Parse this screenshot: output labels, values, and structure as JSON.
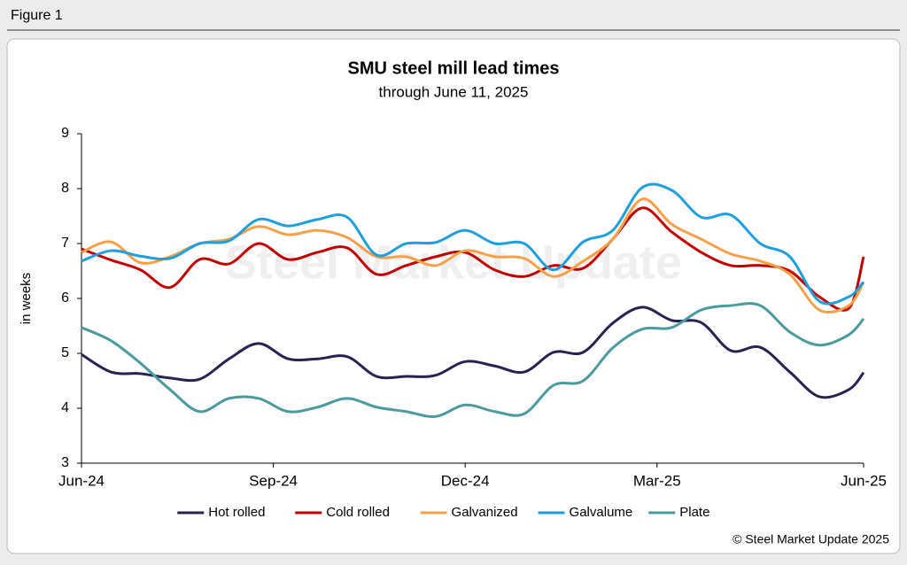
{
  "figure_label": "Figure 1",
  "chart_data": {
    "type": "line",
    "title": "SMU steel mill lead times",
    "subtitle": "through June 11, 2025",
    "y_label": "in weeks",
    "watermark": "Steel Market Update",
    "source": "© Steel Market Update 2025",
    "x": [
      0,
      2,
      4,
      6,
      8,
      10,
      12,
      14,
      16,
      18,
      20,
      22,
      24,
      26,
      28,
      30,
      32,
      34,
      36,
      38,
      40,
      42,
      44,
      46,
      48,
      50,
      52,
      53
    ],
    "xlim": [
      0,
      53
    ],
    "xticks": [
      {
        "value": 0,
        "label": "Jun-24"
      },
      {
        "value": 13,
        "label": "Sep-24"
      },
      {
        "value": 26,
        "label": "Dec-24"
      },
      {
        "value": 39,
        "label": "Mar-25"
      },
      {
        "value": 53,
        "label": "Jun-25"
      }
    ],
    "ylim": [
      3,
      9
    ],
    "yticks": [
      3,
      4,
      5,
      6,
      7,
      8,
      9
    ],
    "grid": false,
    "legend": "bottom",
    "series": [
      {
        "name": "Hot rolled",
        "color": "#27224f",
        "values": [
          4.98,
          4.66,
          4.63,
          4.55,
          4.53,
          4.9,
          5.18,
          4.9,
          4.9,
          4.94,
          4.58,
          4.58,
          4.6,
          4.85,
          4.77,
          4.66,
          5.02,
          5.02,
          5.55,
          5.84,
          5.6,
          5.56,
          5.05,
          5.11,
          4.66,
          4.21,
          4.34,
          4.65
        ]
      },
      {
        "name": "Cold rolled",
        "color": "#c00000",
        "values": [
          6.9,
          6.7,
          6.52,
          6.2,
          6.71,
          6.63,
          7.0,
          6.71,
          6.84,
          6.92,
          6.44,
          6.6,
          6.76,
          6.84,
          6.52,
          6.4,
          6.6,
          6.55,
          7.08,
          7.65,
          7.21,
          6.84,
          6.6,
          6.6,
          6.5,
          6.03,
          5.82,
          6.76
        ]
      },
      {
        "name": "Galvanized",
        "color": "#f7a04a",
        "values": [
          6.84,
          7.03,
          6.65,
          6.76,
          7.0,
          7.08,
          7.31,
          7.16,
          7.24,
          7.11,
          6.76,
          6.76,
          6.6,
          6.87,
          6.76,
          6.73,
          6.4,
          6.68,
          7.08,
          7.81,
          7.35,
          7.08,
          6.81,
          6.68,
          6.44,
          5.79,
          5.87,
          6.3
        ]
      },
      {
        "name": "Galvalume",
        "color": "#1fa0dc",
        "values": [
          6.68,
          6.87,
          6.77,
          6.73,
          7.0,
          7.05,
          7.44,
          7.32,
          7.44,
          7.48,
          6.79,
          7.0,
          7.02,
          7.24,
          7.0,
          7.0,
          6.52,
          7.03,
          7.24,
          8.02,
          7.97,
          7.48,
          7.52,
          7.0,
          6.76,
          5.95,
          6.03,
          6.3
        ]
      },
      {
        "name": "Plate",
        "color": "#4a9a9e",
        "values": [
          5.47,
          5.23,
          4.82,
          4.34,
          3.94,
          4.18,
          4.18,
          3.94,
          4.02,
          4.18,
          4.02,
          3.94,
          3.85,
          4.06,
          3.94,
          3.9,
          4.42,
          4.5,
          5.1,
          5.44,
          5.47,
          5.79,
          5.87,
          5.87,
          5.39,
          5.15,
          5.34,
          5.63
        ]
      }
    ]
  }
}
